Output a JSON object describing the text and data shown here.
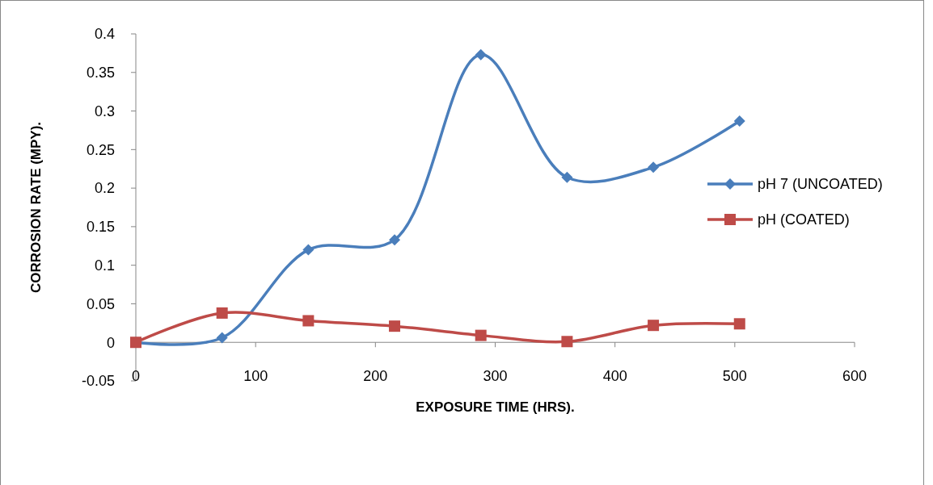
{
  "chart_data": {
    "type": "line",
    "xlabel": "EXPOSURE TIME (HRS).",
    "ylabel": "CORROSION RATE (MPY).",
    "x": [
      0,
      72,
      144,
      216,
      288,
      360,
      432,
      504
    ],
    "series": [
      {
        "name": "pH 7 (UNCOATED)",
        "color": "#4a7ebb",
        "marker": "diamond",
        "values": [
          0,
          0.006,
          0.12,
          0.133,
          0.373,
          0.214,
          0.227,
          0.287
        ]
      },
      {
        "name": "pH (COATED)",
        "color": "#be4b48",
        "marker": "square",
        "values": [
          0,
          0.038,
          0.028,
          0.021,
          0.009,
          0.001,
          0.022,
          0.024
        ]
      }
    ],
    "xlim": [
      0,
      600
    ],
    "xticks": [
      0,
      100,
      200,
      300,
      400,
      500,
      600
    ],
    "ylim": [
      -0.05,
      0.4
    ],
    "yticks": [
      -0.05,
      0,
      0.05,
      0.1,
      0.15,
      0.2,
      0.25,
      0.3,
      0.35,
      0.4
    ],
    "grid": false,
    "legend": "right",
    "line_style": "solid"
  }
}
